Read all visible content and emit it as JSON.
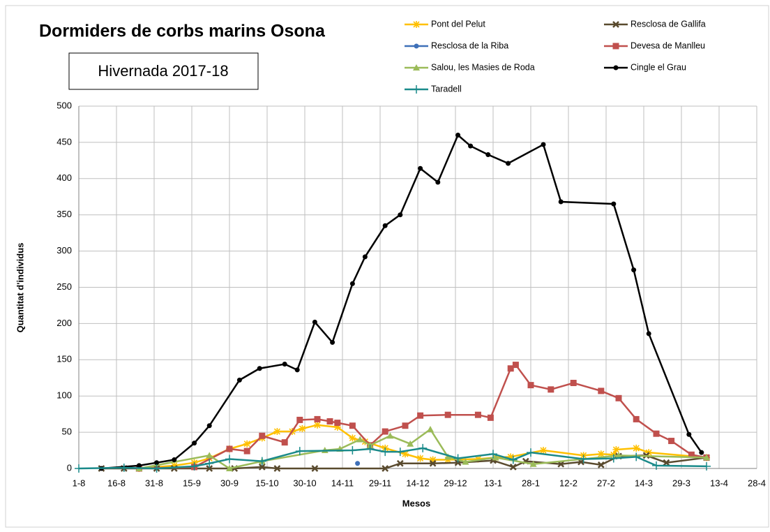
{
  "chart_data": {
    "type": "line",
    "title": "Dormiders de corbs marins Osona",
    "subtitle": "Hivernada 2017-18",
    "x_label": "Mesos",
    "y_label": "Quantitat d'individus",
    "xlim": [
      0,
      270
    ],
    "xticks": [
      {
        "value": 0,
        "label": "1-8"
      },
      {
        "value": 15,
        "label": "16-8"
      },
      {
        "value": 30,
        "label": "31-8"
      },
      {
        "value": 45,
        "label": "15-9"
      },
      {
        "value": 60,
        "label": "30-9"
      },
      {
        "value": 75,
        "label": "15-10"
      },
      {
        "value": 90,
        "label": "30-10"
      },
      {
        "value": 105,
        "label": "14-11"
      },
      {
        "value": 120,
        "label": "29-11"
      },
      {
        "value": 135,
        "label": "14-12"
      },
      {
        "value": 150,
        "label": "29-12"
      },
      {
        "value": 165,
        "label": "13-1"
      },
      {
        "value": 180,
        "label": "28-1"
      },
      {
        "value": 195,
        "label": "12-2"
      },
      {
        "value": 210,
        "label": "27-2"
      },
      {
        "value": 225,
        "label": "14-3"
      },
      {
        "value": 240,
        "label": "29-3"
      },
      {
        "value": 255,
        "label": "13-4"
      },
      {
        "value": 270,
        "label": "28-4"
      }
    ],
    "ylim": [
      0,
      500
    ],
    "yticks": [
      0,
      50,
      100,
      150,
      200,
      250,
      300,
      350,
      400,
      450,
      500
    ],
    "grid": true,
    "legend": "top",
    "series": [
      {
        "name": "Pont del Pelut",
        "color": "#ffc000",
        "marker": "star",
        "x": [
          24,
          38,
          46,
          52,
          60,
          67,
          73,
          79,
          85,
          89,
          95,
          103,
          109,
          114,
          122,
          130,
          136,
          141,
          147,
          159,
          166,
          172,
          185,
          201,
          208,
          213,
          214,
          222,
          227,
          250
        ],
        "values": [
          0,
          4,
          8,
          14,
          27,
          34,
          42,
          51,
          51,
          55,
          60,
          57,
          42,
          37,
          28,
          20,
          14,
          12,
          12,
          13,
          15,
          16,
          25,
          18,
          20,
          19,
          26,
          28,
          22,
          15
        ]
      },
      {
        "name": "Resclosa de Gallifa",
        "color": "#594a2e",
        "marker": "x",
        "x": [
          9,
          18,
          31,
          38,
          52,
          62,
          73,
          79,
          94,
          122,
          128,
          141,
          151,
          165,
          173,
          178,
          192,
          200,
          208,
          215,
          226,
          234,
          250
        ],
        "values": [
          0,
          0,
          0,
          0,
          0,
          0,
          2,
          0,
          0,
          0,
          7,
          7,
          8,
          11,
          2,
          10,
          6,
          9,
          5,
          17,
          18,
          8,
          15
        ]
      },
      {
        "name": "Resclosa de la Riba",
        "color": "#3e70b8",
        "marker": "circle",
        "x": [
          111
        ],
        "values": [
          7
        ]
      },
      {
        "name": "Devesa de Manlleu",
        "color": "#c0504d",
        "marker": "square",
        "x": [
          24,
          46,
          60,
          67,
          73,
          82,
          88,
          95,
          100,
          103,
          109,
          116,
          122,
          130,
          136,
          147,
          159,
          164,
          172,
          174,
          180,
          188,
          197,
          208,
          215,
          222,
          230,
          236,
          244,
          250
        ],
        "values": [
          0,
          2,
          27,
          24,
          45,
          36,
          67,
          68,
          65,
          63,
          59,
          32,
          51,
          59,
          73,
          74,
          74,
          70,
          138,
          143,
          115,
          109,
          118,
          107,
          97,
          68,
          48,
          38,
          19,
          15
        ]
      },
      {
        "name": "Salou, les Masies de Roda",
        "color": "#9bbb59",
        "marker": "triangle",
        "x": [
          24,
          52,
          60,
          73,
          98,
          104,
          112,
          116,
          124,
          132,
          140,
          147,
          154,
          166,
          181,
          215,
          250
        ],
        "values": [
          0,
          18,
          0,
          10,
          25,
          27,
          40,
          32,
          45,
          34,
          54,
          16,
          9,
          15,
          6,
          18,
          15
        ]
      },
      {
        "name": "Cingle el Grau",
        "color": "#000000",
        "marker": "circle",
        "x": [
          9,
          24,
          31,
          38,
          46,
          52,
          64,
          72,
          82,
          87,
          94,
          101,
          109,
          114,
          122,
          128,
          136,
          143,
          151,
          156,
          163,
          171,
          185,
          192,
          213,
          221,
          227,
          243,
          248
        ],
        "values": [
          0,
          4,
          8,
          12,
          35,
          59,
          122,
          138,
          144,
          136,
          202,
          174,
          255,
          292,
          335,
          350,
          414,
          395,
          460,
          445,
          433,
          421,
          447,
          368,
          365,
          274,
          186,
          47,
          22
        ]
      },
      {
        "name": "Taradell",
        "color": "#1a8a8a",
        "marker": "plus",
        "x": [
          0,
          18,
          31,
          46,
          52,
          60,
          73,
          88,
          109,
          116,
          122,
          128,
          137,
          151,
          165,
          173,
          180,
          201,
          213,
          222,
          230,
          250
        ],
        "values": [
          0,
          1,
          0,
          3,
          7,
          13,
          10,
          24,
          25,
          27,
          23,
          23,
          28,
          14,
          20,
          12,
          22,
          13,
          14,
          16,
          4,
          3
        ]
      }
    ]
  }
}
